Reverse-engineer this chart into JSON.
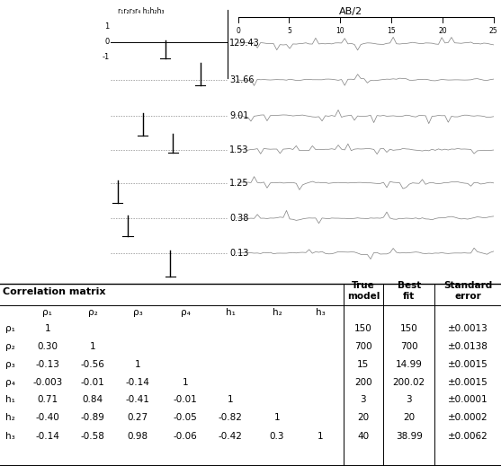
{
  "title_top": "AB/2",
  "layer_labels": [
    "129.43",
    "31.66",
    "9.01",
    "1.53",
    "1.25",
    "0.38",
    "0.13"
  ],
  "corr_header": "Correlation matrix",
  "col_headers": [
    "ρ₁",
    "ρ₂",
    "ρ₃",
    "ρ₄",
    "h₁",
    "h₂",
    "h₃"
  ],
  "row_headers": [
    "ρ₁",
    "ρ₂",
    "ρ₃",
    "ρ₄",
    "h₁",
    "h₂",
    "h₃"
  ],
  "corr_matrix": [
    [
      "1",
      "",
      "",
      "",
      "",
      "",
      ""
    ],
    [
      "0.30",
      "1",
      "",
      "",
      "",
      "",
      ""
    ],
    [
      "-0.13",
      "-0.56",
      "1",
      "",
      "",
      "",
      ""
    ],
    [
      "-0.003",
      "-0.01",
      "-0.14",
      "1",
      "",
      "",
      ""
    ],
    [
      "0.71",
      "0.84",
      "-0.41",
      "-0.01",
      "1",
      "",
      ""
    ],
    [
      "-0.40",
      "-0.89",
      "0.27",
      "-0.05",
      "-0.82",
      "1",
      ""
    ],
    [
      "-0.14",
      "-0.58",
      "0.98",
      "-0.06",
      "-0.42",
      "0.3",
      "1"
    ]
  ],
  "true_model": [
    "150",
    "700",
    "15",
    "200",
    "3",
    "20",
    "40"
  ],
  "best_fit": [
    "150",
    "700",
    "14.99",
    "200.02",
    "3",
    "20",
    "38.99"
  ],
  "std_error": [
    "±0.0013",
    "±0.0138",
    "±0.0015",
    "±0.0015",
    "±0.0001",
    "±0.0002",
    "±0.0062"
  ],
  "ab2_ticks": [
    0,
    5,
    10,
    15,
    20,
    25
  ],
  "left_panel_label": "r₁r₂r₃r₄ h₁h₂h₃",
  "left_yticks": [
    "1",
    "0",
    "-1"
  ],
  "vline_x1": 0.685,
  "vline_x2": 0.765,
  "vline_x3": 0.868
}
